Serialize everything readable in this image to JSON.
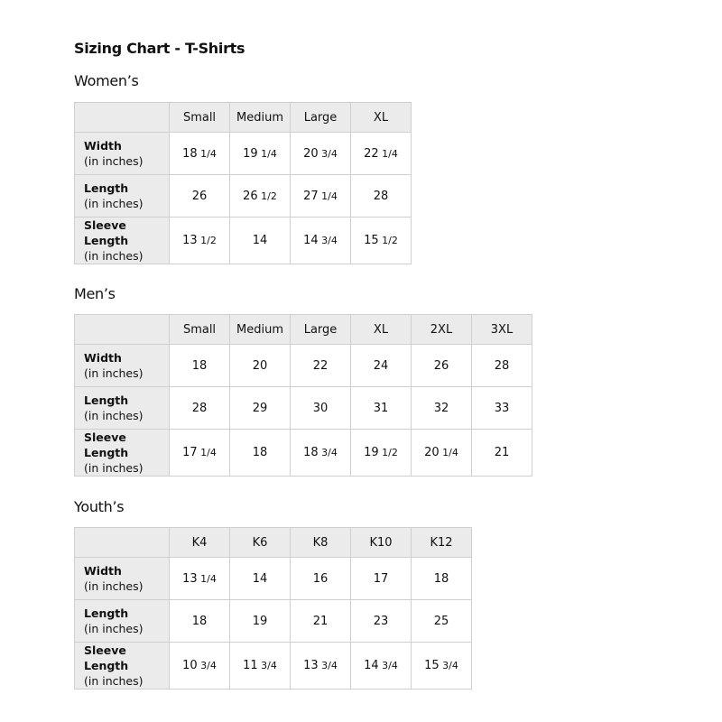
{
  "title": "Sizing Chart - T-Shirts",
  "unit_label": "(in inches)",
  "tables": [
    {
      "heading": "Women’s",
      "columns": [
        "Small",
        "Medium",
        "Large",
        "XL"
      ],
      "rows": [
        {
          "label": "Width",
          "values": [
            "18 1/4",
            "19 1/4",
            "20 3/4",
            "22 1/4"
          ]
        },
        {
          "label": "Length",
          "values": [
            "26",
            "26 1/2",
            "27 1/4",
            "28"
          ]
        },
        {
          "label": "Sleeve Length",
          "values": [
            "13 1/2",
            "14",
            "14 3/4",
            "15 1/2"
          ]
        }
      ]
    },
    {
      "heading": "Men’s",
      "columns": [
        "Small",
        "Medium",
        "Large",
        "XL",
        "2XL",
        "3XL"
      ],
      "rows": [
        {
          "label": "Width",
          "values": [
            "18",
            "20",
            "22",
            "24",
            "26",
            "28"
          ]
        },
        {
          "label": "Length",
          "values": [
            "28",
            "29",
            "30",
            "31",
            "32",
            "33"
          ]
        },
        {
          "label": "Sleeve Length",
          "values": [
            "17 1/4",
            "18",
            "18 3/4",
            "19 1/2",
            "20 1/4",
            "21"
          ]
        }
      ]
    },
    {
      "heading": "Youth’s",
      "columns": [
        "K4",
        "K6",
        "K8",
        "K10",
        "K12"
      ],
      "rows": [
        {
          "label": "Width",
          "values": [
            "13 1/4",
            "14",
            "16",
            "17",
            "18"
          ]
        },
        {
          "label": "Length",
          "values": [
            "18",
            "19",
            "21",
            "23",
            "25"
          ]
        },
        {
          "label": "Sleeve Length",
          "values": [
            "10 3/4",
            "11 3/4",
            "13 3/4",
            "14 3/4",
            "15 3/4"
          ]
        }
      ]
    }
  ]
}
